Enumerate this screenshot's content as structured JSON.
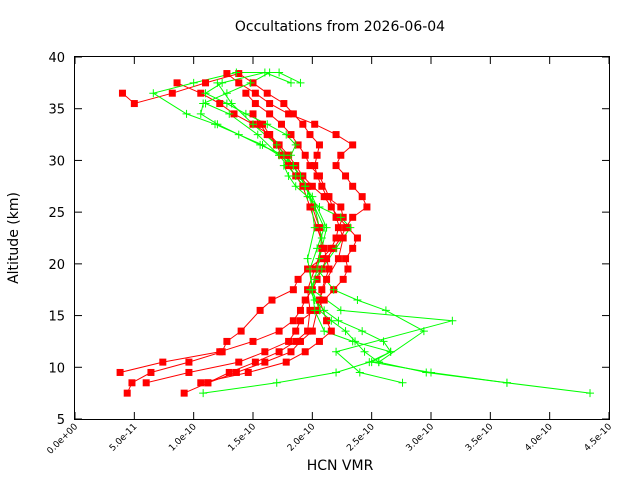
{
  "chart_data": {
    "type": "line",
    "title": "Occultations from 2026-06-04",
    "xlabel": "HCN VMR",
    "ylabel": "Altitude (km)",
    "xlim": [
      0,
      4.5e-10
    ],
    "ylim": [
      5,
      40
    ],
    "x_ticks": [
      "0.0e+00",
      "5.0e-11",
      "1.0e-10",
      "1.5e-10",
      "2.0e-10",
      "2.5e-10",
      "3.0e-10",
      "3.5e-10",
      "4.0e-10",
      "4.5e-10"
    ],
    "y_ticks": [
      "5",
      "10",
      "15",
      "20",
      "25",
      "30",
      "35",
      "40"
    ],
    "grid": false,
    "legend": "none",
    "series": [
      {
        "color": "#ff0000",
        "marker": "square",
        "x": [
          4.4e-11,
          4.8e-11,
          6.4e-11,
          9.6e-11,
          1.24e-10,
          1.28e-10,
          1.4e-10,
          1.56e-10,
          1.66e-10,
          1.84e-10,
          1.88e-10,
          1.96e-10,
          2.08e-10,
          2.16e-10,
          2.2e-10,
          2.22e-10,
          2.26e-10,
          2.24e-10,
          2.12e-10,
          2.08e-10,
          2.04e-10,
          2.02e-10,
          2.04e-10,
          2.06e-10,
          1.98e-10,
          1.92e-10,
          1.84e-10,
          1.76e-10,
          1.62e-10,
          1.5e-10,
          1.38e-10,
          1.1e-10,
          8.2e-11,
          5e-11,
          4e-11
        ],
        "y": [
          7.5,
          8.5,
          9.5,
          10.5,
          11.5,
          12.5,
          13.5,
          15.5,
          16.5,
          17.5,
          18.5,
          19.5,
          20.5,
          21.5,
          22.5,
          23.5,
          24.5,
          25.5,
          26.5,
          27.5,
          28.5,
          29.5,
          30.5,
          31.5,
          32.5,
          33.5,
          34.5,
          35.5,
          36.5,
          37.5,
          38.4,
          37.5,
          36.5,
          35.5,
          36.5
        ]
      },
      {
        "color": "#ff0000",
        "marker": "square",
        "x": [
          6e-11,
          9.6e-11,
          1.38e-10,
          1.6e-10,
          1.8e-10,
          1.86e-10,
          1.9e-10,
          2.02e-10,
          2.1e-10,
          2.18e-10,
          2.26e-10,
          2.3e-10,
          2.28e-10,
          2.34e-10,
          2.38e-10,
          2.3e-10,
          2.22e-10,
          2.16e-10,
          2.1e-10,
          2e-10,
          1.92e-10,
          1.86e-10,
          1.8e-10,
          1.72e-10,
          1.64e-10,
          1.5e-10,
          1.34e-10,
          1.22e-10,
          1.06e-10,
          8.6e-11
        ],
        "y": [
          8.5,
          9.5,
          10.5,
          11.5,
          12.5,
          13.5,
          14.5,
          15.5,
          16.5,
          17.5,
          18.5,
          19.5,
          20.5,
          21.5,
          22.5,
          23.5,
          24.5,
          25.5,
          26.5,
          27.5,
          28.5,
          29.5,
          30.5,
          31.5,
          32.5,
          33.5,
          34.5,
          35.5,
          36.5,
          37.5
        ]
      },
      {
        "color": "#ff0000",
        "marker": "square",
        "x": [
          3.8e-11,
          7.4e-11,
          1.22e-10,
          1.5e-10,
          1.72e-10,
          1.84e-10,
          1.9e-10,
          1.94e-10,
          2e-10,
          2.04e-10,
          2.08e-10,
          2.12e-10,
          2.18e-10,
          2.24e-10,
          2.28e-10,
          2.34e-10,
          2.46e-10,
          2.42e-10,
          2.34e-10,
          2.28e-10,
          2.2e-10,
          2.24e-10,
          2.34e-10,
          2.2e-10,
          2.02e-10,
          1.8e-10,
          1.64e-10,
          1.52e-10,
          1.38e-10,
          1.28e-10
        ],
        "y": [
          9.5,
          10.5,
          11.5,
          12.5,
          13.5,
          14.5,
          15.5,
          16.5,
          17.5,
          18.5,
          19.5,
          20.5,
          21.5,
          22.5,
          23.5,
          24.5,
          25.5,
          26.5,
          27.5,
          28.5,
          29.5,
          30.5,
          31.5,
          32.5,
          33.5,
          34.5,
          35.5,
          36.5,
          37.5,
          38.4
        ]
      },
      {
        "color": "#ff0000",
        "marker": "square",
        "x": [
          1.06e-10,
          1.46e-10,
          1.78e-10,
          1.94e-10,
          2.06e-10,
          2.16e-10,
          2.12e-10,
          2.06e-10,
          2.12e-10,
          2.22e-10,
          2.26e-10,
          2.2e-10,
          2.14e-10,
          2.06e-10,
          1.98e-10,
          1.94e-10,
          1.88e-10,
          1.82e-10,
          1.74e-10,
          1.64e-10,
          1.52e-10,
          1.44e-10
        ],
        "y": [
          8.5,
          9.5,
          10.5,
          11.5,
          12.5,
          13.5,
          14.5,
          16.5,
          18.5,
          20.5,
          22.5,
          24.5,
          26.5,
          28.5,
          29.5,
          30.5,
          31.5,
          32.5,
          33.5,
          34.5,
          35.5,
          36.5
        ]
      },
      {
        "color": "#ff0000",
        "marker": "square",
        "x": [
          9.2e-11,
          1.12e-10,
          1.3e-10,
          1.52e-10,
          1.72e-10,
          1.86e-10,
          1.96e-10,
          1.98e-10,
          1.96e-10,
          2.02e-10,
          2.08e-10,
          2.06e-10,
          2e-10,
          1.96e-10,
          1.9e-10,
          1.84e-10,
          1.78e-10,
          1.7e-10,
          1.62e-10,
          1.56e-10,
          1.5e-10
        ],
        "y": [
          7.5,
          8.5,
          9.5,
          10.5,
          11.5,
          12.5,
          13.5,
          15.5,
          17.5,
          19.5,
          21.5,
          23.5,
          25.5,
          27.5,
          28.5,
          29.5,
          30.5,
          31.5,
          32.5,
          33.5,
          34.5
        ]
      },
      {
        "color": "#ff0000",
        "marker": "square",
        "x": [
          1.12e-10,
          1.36e-10,
          1.6e-10,
          1.82e-10,
          1.9e-10,
          2e-10,
          2.04e-10,
          2.08e-10,
          2.14e-10,
          2.1e-10,
          2.04e-10,
          1.98e-10,
          1.92e-10,
          1.86e-10,
          1.8e-10,
          1.74e-10,
          1.7e-10,
          1.64e-10,
          1.58e-10
        ],
        "y": [
          8.5,
          9.5,
          10.5,
          11.5,
          12.5,
          13.5,
          15.5,
          17.5,
          19.5,
          21.5,
          23.5,
          25.5,
          27.5,
          28.5,
          29.5,
          30.5,
          31.5,
          32.5,
          33.5
        ]
      },
      {
        "color": "#00ff00",
        "marker": "plus",
        "x": [
          1.08e-10,
          1.7e-10,
          2.2e-10,
          2.48e-10,
          2.66e-10,
          2.6e-10,
          2.42e-10,
          2.22e-10,
          2.1e-10,
          2.02e-10,
          1.98e-10,
          2.02e-10,
          2.08e-10,
          2.2e-10,
          2.32e-10,
          2.24e-10,
          2.06e-10,
          1.96e-10,
          1.86e-10,
          1.8e-10,
          1.76e-10,
          1.82e-10,
          1.86e-10,
          1.78e-10,
          1.62e-10,
          1.44e-10,
          1.28e-10,
          1.1e-10,
          1.24e-10,
          1.6e-10,
          1.82e-10
        ],
        "y": [
          7.5,
          8.5,
          9.5,
          10.5,
          11.5,
          12.5,
          13.5,
          14.5,
          15.5,
          16.5,
          17.5,
          18.5,
          19.5,
          21.5,
          23.5,
          24.5,
          25.5,
          26.5,
          27.5,
          28.5,
          29.5,
          30.5,
          31.5,
          32.5,
          33.5,
          34.5,
          35.5,
          36.5,
          37.5,
          38.5,
          37.5
        ]
      },
      {
        "color": "#00ff00",
        "marker": "plus",
        "x": [
          4.34e-10,
          3.64e-10,
          2.96e-10,
          2.56e-10,
          2.44e-10,
          2.36e-10,
          2.28e-10,
          2.16e-10,
          2.06e-10,
          2e-10,
          1.98e-10,
          2.04e-10,
          2.1e-10,
          2.02e-10,
          1.94e-10,
          1.84e-10,
          1.72e-10,
          1.58e-10,
          1.38e-10,
          1.18e-10,
          9.4e-11,
          6.6e-11,
          1e-10,
          1.36e-10,
          1.72e-10,
          1.9e-10
        ],
        "y": [
          7.5,
          8.5,
          9.5,
          10.5,
          11.5,
          12.5,
          13.5,
          14.5,
          15.5,
          17.5,
          19.5,
          21.5,
          23.5,
          25.5,
          27.5,
          29.5,
          30.5,
          31.5,
          32.5,
          33.5,
          34.5,
          36.5,
          37.5,
          38.5,
          38.5,
          37.5
        ]
      },
      {
        "color": "#00ff00",
        "marker": "plus",
        "x": [
          3.64e-10,
          3e-10,
          2.5e-10,
          2.66e-10,
          2.34e-10,
          2.1e-10,
          2.02e-10,
          2e-10,
          2.06e-10,
          2.12e-10,
          2e-10,
          1.86e-10,
          1.72e-10,
          1.54e-10,
          1.3e-10,
          1.1e-10
        ],
        "y": [
          8.5,
          9.5,
          10.5,
          11.5,
          12.5,
          13.5,
          15.5,
          17.5,
          20.5,
          23.5,
          26.5,
          28.5,
          30.5,
          32.5,
          34.5,
          35.5
        ]
      },
      {
        "color": "#00ff00",
        "marker": "plus",
        "x": [
          2.76e-10,
          2.4e-10,
          2.2e-10,
          3.18e-10,
          2.24e-10,
          2e-10,
          1.96e-10,
          2.02e-10,
          1.98e-10,
          1.9e-10,
          1.76e-10,
          1.56e-10,
          1.2e-10,
          1.06e-10,
          1.08e-10,
          1.28e-10,
          1.48e-10,
          1.64e-10
        ],
        "y": [
          8.5,
          9.5,
          11.5,
          14.5,
          15.5,
          17.5,
          20.5,
          23.5,
          26.5,
          28.5,
          30.5,
          31.5,
          33.5,
          34.5,
          35.5,
          36.5,
          37.5,
          38.5
        ]
      },
      {
        "color": "#00ff00",
        "marker": "plus",
        "x": [
          2.56e-10,
          2.94e-10,
          2.62e-10,
          2.38e-10,
          2.18e-10,
          2.04e-10,
          2.08e-10,
          2.02e-10,
          1.94e-10,
          1.84e-10,
          1.7e-10,
          1.5e-10,
          1.32e-10,
          1.2e-10
        ],
        "y": [
          10.5,
          13.5,
          15.5,
          16.5,
          17.5,
          19.5,
          22.5,
          25.5,
          27.5,
          29.5,
          31.5,
          33.5,
          35.5,
          37.5
        ]
      }
    ]
  }
}
